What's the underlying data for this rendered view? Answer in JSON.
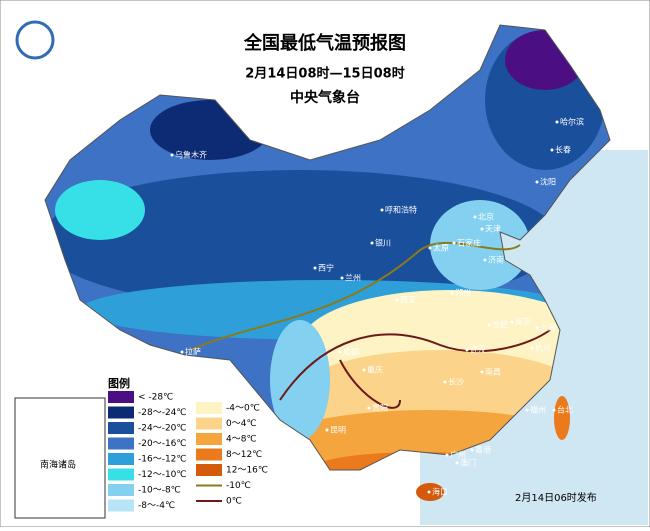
{
  "header": {
    "title": "全国最低气温预报图",
    "period": "2月14日08时—15日08时",
    "issuer": "中央气象台"
  },
  "legend": {
    "title": "图例",
    "items": [
      {
        "label": "< -28℃",
        "color": "#4b0f83"
      },
      {
        "label": "-28～-24℃",
        "color": "#0d2b74"
      },
      {
        "label": "-24～-20℃",
        "color": "#1a4f9c"
      },
      {
        "label": "-20～-16℃",
        "color": "#3d72c4"
      },
      {
        "label": "-16～-12℃",
        "color": "#2e9fd9"
      },
      {
        "label": "-12～-10℃",
        "color": "#37e0e6"
      },
      {
        "label": "-10～-8℃",
        "color": "#84d0f0"
      },
      {
        "label": "-8～-4℃",
        "color": "#b7e4f6"
      },
      {
        "label": "-4～0℃",
        "color": "#fdf3c4"
      },
      {
        "label": "0～4℃",
        "color": "#fbd38a"
      },
      {
        "label": "4～8℃",
        "color": "#f5a53d"
      },
      {
        "label": "8～12℃",
        "color": "#ea7a1c"
      },
      {
        "label": "12～16℃",
        "color": "#d45a0c"
      },
      {
        "label": "-10℃",
        "color": "#8a7a1a",
        "kind": "line"
      },
      {
        "label": "0℃",
        "color": "#6b1a1a",
        "kind": "line"
      }
    ]
  },
  "inset": {
    "label": "南海诸岛"
  },
  "cities": [
    "乌鲁木齐",
    "哈尔滨",
    "长春",
    "沈阳",
    "呼和浩特",
    "北京",
    "天津",
    "石家庄",
    "太原",
    "济南",
    "银川",
    "西宁",
    "兰州",
    "西安",
    "郑州",
    "合肥",
    "南京",
    "上海",
    "杭州",
    "武汉",
    "成都",
    "拉萨",
    "重庆",
    "长沙",
    "南昌",
    "贵阳",
    "昆明",
    "福州",
    "台北",
    "南宁",
    "广州",
    "香港",
    "澳门",
    "海口"
  ],
  "footer": {
    "issued": "2月14日06时发布"
  }
}
